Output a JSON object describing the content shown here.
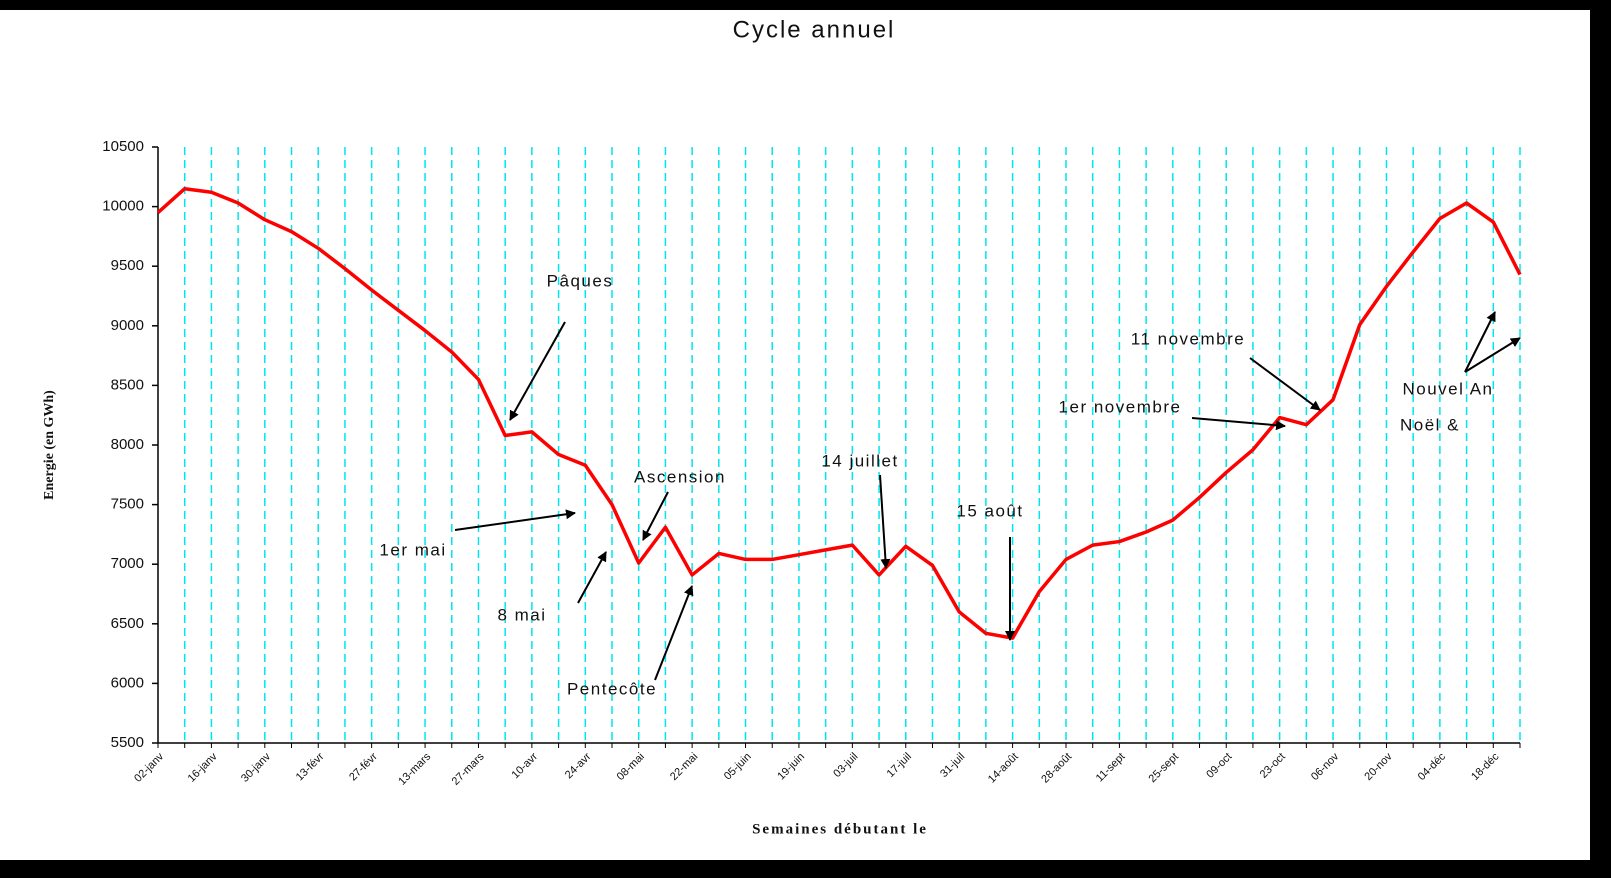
{
  "chart_data": {
    "type": "line",
    "title": "Cycle annuel",
    "x_label": "Semaines débutant le",
    "y_label": "Energie (en GWh)",
    "categories": [
      "02-janv",
      null,
      "16-janv",
      null,
      "30-janv",
      null,
      "13-févr",
      null,
      "27-févr",
      null,
      "13-mars",
      null,
      "27-mars",
      null,
      "10-avr",
      null,
      "24-avr",
      null,
      "08-mai",
      null,
      "22-mai",
      null,
      "05-juin",
      null,
      "19-juin",
      null,
      "03-juil",
      null,
      "17-juil",
      null,
      "31-juil",
      null,
      "14-août",
      null,
      "28-août",
      null,
      "11-sept",
      null,
      "25-sept",
      null,
      "09-oct",
      null,
      "23-oct",
      null,
      "06-nov",
      null,
      "20-nov",
      null,
      "04-déc",
      null,
      "18-déc",
      null
    ],
    "series": [
      {
        "name": "Energie",
        "color": "#ff0000",
        "values": [
          9950,
          10150,
          10120,
          10030,
          9890,
          9790,
          9650,
          9480,
          9300,
          9130,
          8960,
          8780,
          8550,
          8080,
          8110,
          7920,
          7830,
          7500,
          7010,
          7310,
          6910,
          7090,
          7040,
          7040,
          7080,
          7120,
          7160,
          6910,
          7150,
          6990,
          6600,
          6420,
          6380,
          6770,
          7040,
          7160,
          7190,
          7270,
          7370,
          7560,
          7770,
          7960,
          8230,
          8170,
          8380,
          9010,
          9330,
          9620,
          9900,
          10030,
          9870,
          9430
        ]
      }
    ],
    "ylim": [
      5500,
      10500
    ],
    "yticks": [
      5500,
      6000,
      6500,
      7000,
      7500,
      8000,
      8500,
      9000,
      9500,
      10000,
      10500
    ],
    "grid": true,
    "grid_color": "#00e5ee",
    "annotations": [
      "Pâques",
      "1er mai",
      "8 mai",
      "Ascension",
      "Pentecôte",
      "14 juillet",
      "15 août",
      "1er novembre",
      "11 novembre",
      "Nouvel An",
      "Noël &"
    ]
  }
}
